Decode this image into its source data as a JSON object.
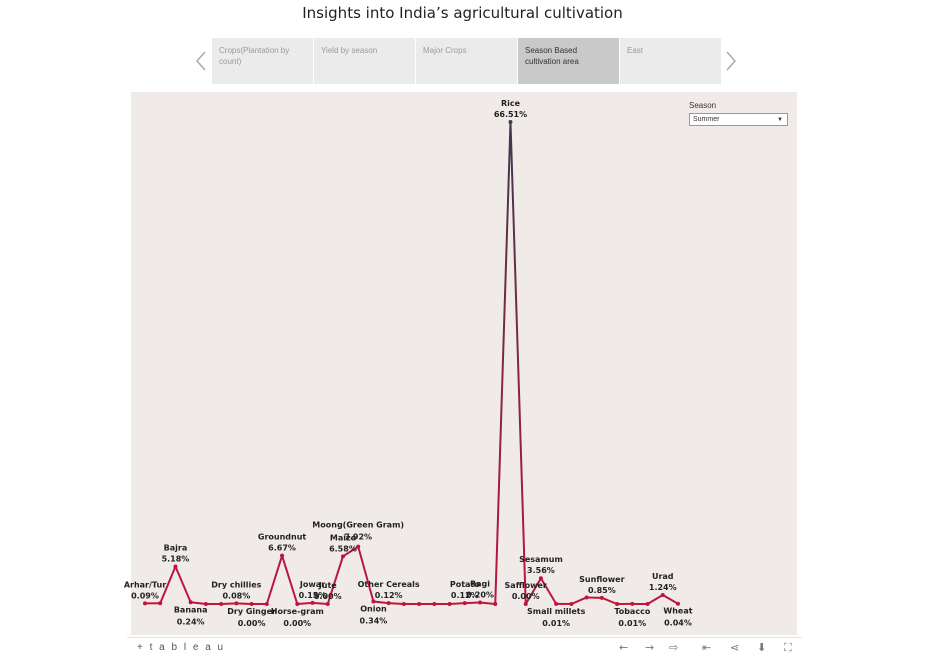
{
  "title": "Insights into India’s agricultural cultivation",
  "tabs": [
    {
      "label": "Crops(Plantation by count)",
      "active": false
    },
    {
      "label": "Yield by season",
      "active": false
    },
    {
      "label": "Major Crops",
      "active": false
    },
    {
      "label": "Season Based cultivation area",
      "active": true
    },
    {
      "label": "East",
      "active": false
    }
  ],
  "filter": {
    "label": "Season",
    "value": "Summer"
  },
  "toolbar": {
    "logo": "+ t a b l e a u"
  },
  "colors": {
    "low": "#c0143c",
    "high": "#3e3a4e",
    "background": "#f0ebe9"
  },
  "chart_data": {
    "type": "line",
    "title": "",
    "xlabel": "",
    "ylabel": "",
    "ylim": [
      0,
      70
    ],
    "grid": false,
    "points": [
      {
        "label": "Arhar/Tur",
        "value": 0.09,
        "show_label": true,
        "label_pos": "above"
      },
      {
        "label": "",
        "value": 0.1,
        "show_label": false
      },
      {
        "label": "Bajra",
        "value": 5.18,
        "show_label": true,
        "label_pos": "above"
      },
      {
        "label": "Banana",
        "value": 0.24,
        "show_label": true,
        "label_pos": "below"
      },
      {
        "label": "",
        "value": 0.0,
        "show_label": false
      },
      {
        "label": "",
        "value": 0.0,
        "show_label": false
      },
      {
        "label": "Dry chillies",
        "value": 0.08,
        "show_label": true,
        "label_pos": "above"
      },
      {
        "label": "Dry Ginger",
        "value": 0.0,
        "show_label": true,
        "label_pos": "below"
      },
      {
        "label": "",
        "value": 0.0,
        "show_label": false
      },
      {
        "label": "Groundnut",
        "value": 6.67,
        "show_label": true,
        "label_pos": "above"
      },
      {
        "label": "Horse-gram",
        "value": 0.0,
        "show_label": true,
        "label_pos": "below"
      },
      {
        "label": "Jowar",
        "value": 0.15,
        "show_label": true,
        "label_pos": "above"
      },
      {
        "label": "Jute",
        "value": 0.0,
        "show_label": true,
        "label_pos": "above"
      },
      {
        "label": "Maize",
        "value": 6.58,
        "show_label": true,
        "label_pos": "above"
      },
      {
        "label": "Moong(Green Gram)",
        "value": 7.92,
        "show_label": true,
        "label_pos": "above"
      },
      {
        "label": "Onion",
        "value": 0.34,
        "show_label": true,
        "label_pos": "below"
      },
      {
        "label": "Other Cereals",
        "value": 0.12,
        "show_label": true,
        "label_pos": "above"
      },
      {
        "label": "",
        "value": 0.0,
        "show_label": false
      },
      {
        "label": "",
        "value": 0.0,
        "show_label": false
      },
      {
        "label": "",
        "value": 0.0,
        "show_label": false
      },
      {
        "label": "",
        "value": 0.0,
        "show_label": false
      },
      {
        "label": "Potato",
        "value": 0.12,
        "show_label": true,
        "label_pos": "above"
      },
      {
        "label": "Ragi",
        "value": 0.2,
        "show_label": true,
        "label_pos": "above"
      },
      {
        "label": "",
        "value": 0.0,
        "show_label": false
      },
      {
        "label": "Rice",
        "value": 66.51,
        "show_label": true,
        "label_pos": "above"
      },
      {
        "label": "Safflower",
        "value": 0.0,
        "show_label": true,
        "label_pos": "above"
      },
      {
        "label": "Sesamum",
        "value": 3.56,
        "show_label": true,
        "label_pos": "above"
      },
      {
        "label": "Small millets",
        "value": 0.01,
        "show_label": true,
        "label_pos": "below"
      },
      {
        "label": "",
        "value": 0.0,
        "show_label": false
      },
      {
        "label": "",
        "value": 0.9,
        "show_label": false
      },
      {
        "label": "Sunflower",
        "value": 0.85,
        "show_label": true,
        "label_pos": "above"
      },
      {
        "label": "",
        "value": 0.0,
        "show_label": false
      },
      {
        "label": "Tobacco",
        "value": 0.01,
        "show_label": true,
        "label_pos": "below"
      },
      {
        "label": "",
        "value": 0.0,
        "show_label": false
      },
      {
        "label": "Urad",
        "value": 1.24,
        "show_label": true,
        "label_pos": "above"
      },
      {
        "label": "Wheat",
        "value": 0.04,
        "show_label": true,
        "label_pos": "below"
      }
    ],
    "value_labels": {
      "Arhar/Tur": "0.09%",
      "Bajra": "5.18%",
      "Banana": "0.24%",
      "Dry chillies": "0.08%",
      "Dry Ginger": "0.00%",
      "Groundnut": "6.67%",
      "Horse-gram": "0.00%",
      "Jowar": "0.15%",
      "Jute": "0.00%",
      "Maize": "6.58%",
      "Moong(Green Gram)": "7.92%",
      "Onion": "0.34%",
      "Other Cereals": "0.12%",
      "Potato": "0.12%",
      "Ragi": "0.20%",
      "Rice": "66.51%",
      "Safflower": "0.00%",
      "Sesamum": "3.56%",
      "Small millets": "0.01%",
      "Sunflower": "0.85%",
      "Tobacco": "0.01%",
      "Urad": "1.24%",
      "Wheat": "0.04%"
    }
  }
}
